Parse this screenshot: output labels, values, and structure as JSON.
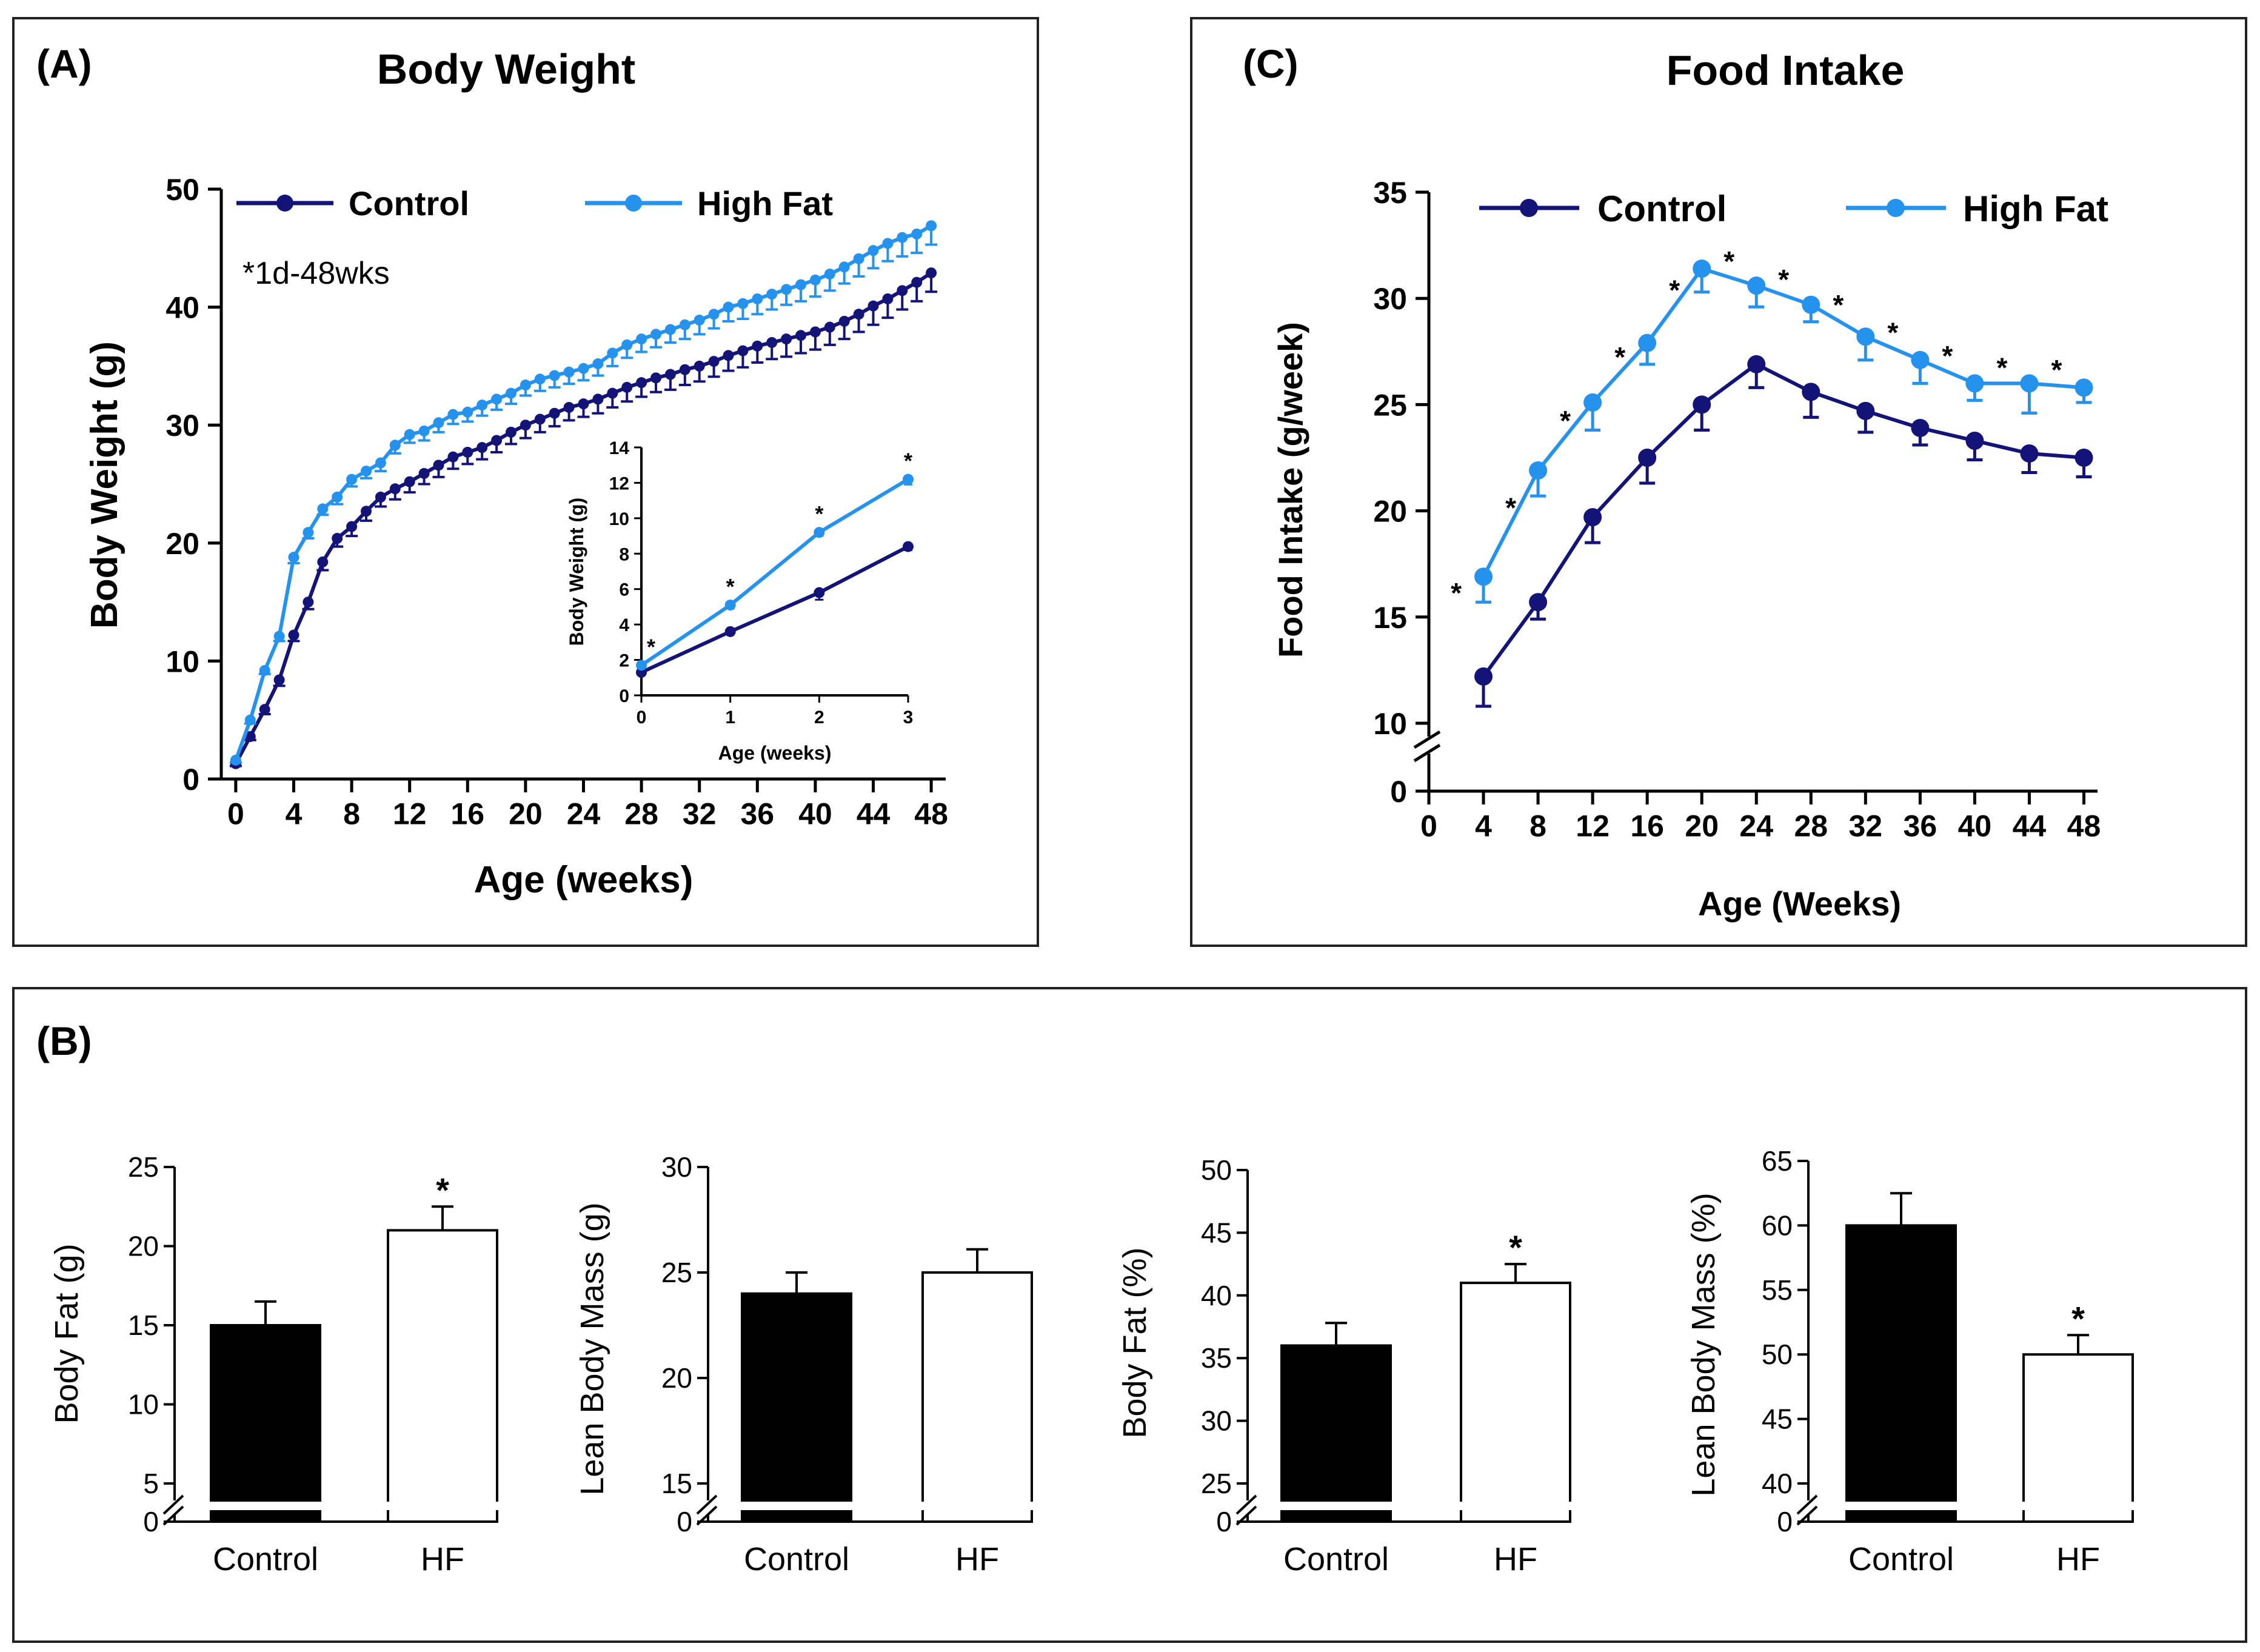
{
  "colors": {
    "control": "#141478",
    "high_fat": "#2592EE",
    "frame": "#222222",
    "bar_control": "#000000",
    "bar_hf": "#ffffff"
  },
  "chart_data": [
    {
      "id": "A",
      "type": "line",
      "panel_label": "(A)",
      "title": "Body Weight",
      "xlabel": "Age (weeks)",
      "ylabel": "Body Weight (g)",
      "xlim": [
        -1,
        49
      ],
      "ylim": [
        0,
        50
      ],
      "xticks": [
        0,
        4,
        8,
        12,
        16,
        20,
        24,
        28,
        32,
        36,
        40,
        44,
        48
      ],
      "yticks": [
        0,
        10,
        20,
        30,
        40,
        50
      ],
      "annotation": "*1d-48wks",
      "legend": [
        "Control",
        "High Fat"
      ],
      "legend_position": "top",
      "x": [
        0,
        1,
        2,
        3,
        4,
        5,
        6,
        7,
        8,
        9,
        10,
        11,
        12,
        13,
        14,
        15,
        16,
        17,
        18,
        19,
        20,
        21,
        22,
        23,
        24,
        25,
        26,
        27,
        28,
        29,
        30,
        31,
        32,
        33,
        34,
        35,
        36,
        37,
        38,
        39,
        40,
        41,
        42,
        43,
        44,
        45,
        46,
        47,
        48
      ],
      "series": [
        {
          "name": "Control",
          "values": [
            1.3,
            3.6,
            5.9,
            8.4,
            12.2,
            15.0,
            18.4,
            20.4,
            21.4,
            22.7,
            23.9,
            24.6,
            25.2,
            25.9,
            26.6,
            27.3,
            27.7,
            28.1,
            28.7,
            29.4,
            30.0,
            30.5,
            31.0,
            31.5,
            31.8,
            32.2,
            32.7,
            33.2,
            33.6,
            34.0,
            34.3,
            34.7,
            35.0,
            35.4,
            35.9,
            36.3,
            36.7,
            37.0,
            37.3,
            37.6,
            37.9,
            38.3,
            38.8,
            39.4,
            40.1,
            40.7,
            41.4,
            42.1,
            42.9
          ],
          "errors": [
            0.2,
            0.3,
            0.4,
            0.5,
            0.5,
            0.6,
            0.7,
            0.7,
            0.8,
            0.8,
            0.8,
            0.9,
            0.9,
            0.9,
            1.0,
            1.0,
            1.0,
            1.0,
            1.0,
            1.0,
            1.1,
            1.1,
            1.1,
            1.1,
            1.1,
            1.2,
            1.2,
            1.2,
            1.2,
            1.2,
            1.3,
            1.3,
            1.3,
            1.3,
            1.3,
            1.4,
            1.4,
            1.4,
            1.5,
            1.5,
            1.5,
            1.5,
            1.5,
            1.5,
            1.6,
            1.6,
            1.6,
            1.6,
            1.6
          ]
        },
        {
          "name": "High Fat",
          "values": [
            1.6,
            5.0,
            9.2,
            12.1,
            18.8,
            20.9,
            22.9,
            23.9,
            25.4,
            26.1,
            26.8,
            28.3,
            29.2,
            29.5,
            30.2,
            30.9,
            31.1,
            31.7,
            32.2,
            32.7,
            33.4,
            33.9,
            34.2,
            34.5,
            34.8,
            35.2,
            36.1,
            36.8,
            37.3,
            37.7,
            38.1,
            38.5,
            38.9,
            39.4,
            40.0,
            40.3,
            40.7,
            41.1,
            41.5,
            41.9,
            42.3,
            42.8,
            43.4,
            44.1,
            44.8,
            45.4,
            45.9,
            46.2,
            46.9
          ],
          "errors": [
            0.2,
            0.3,
            0.3,
            0.4,
            0.5,
            0.5,
            0.5,
            0.6,
            0.6,
            0.6,
            0.7,
            0.7,
            0.7,
            0.8,
            0.8,
            0.8,
            0.8,
            0.9,
            0.9,
            0.9,
            0.9,
            1.0,
            1.0,
            1.0,
            1.0,
            1.0,
            1.1,
            1.1,
            1.1,
            1.1,
            1.1,
            1.2,
            1.2,
            1.2,
            1.2,
            1.3,
            1.3,
            1.3,
            1.3,
            1.4,
            1.4,
            1.4,
            1.4,
            1.5,
            1.5,
            1.5,
            1.6,
            1.6,
            1.6
          ]
        }
      ]
    },
    {
      "id": "A-inset",
      "type": "line",
      "xlabel": "Age (weeks)",
      "ylabel": "Body Weight (g)",
      "xlim": [
        0,
        3
      ],
      "ylim": [
        0,
        14
      ],
      "xticks": [
        0,
        1,
        2,
        3
      ],
      "yticks": [
        0,
        2,
        4,
        6,
        8,
        10,
        12,
        14
      ],
      "x": [
        0,
        1,
        2,
        3
      ],
      "series": [
        {
          "name": "Control",
          "values": [
            1.3,
            3.6,
            5.8,
            8.4
          ],
          "errors": [
            0.1,
            0.1,
            0.4,
            0.2
          ]
        },
        {
          "name": "High Fat",
          "values": [
            1.7,
            5.1,
            9.2,
            12.2
          ],
          "errors": [
            0.1,
            0.2,
            0.2,
            0.3
          ]
        }
      ],
      "significance": [
        "*",
        "*",
        "*",
        "*"
      ]
    },
    {
      "id": "C",
      "type": "line",
      "panel_label": "(C)",
      "title": "Food Intake",
      "xlabel": "Age (Weeks)",
      "ylabel": "Food Intake (g/week)",
      "xlim": [
        0,
        49
      ],
      "ylim": [
        10,
        35
      ],
      "axis_break": true,
      "xticks": [
        0,
        4,
        8,
        12,
        16,
        20,
        24,
        28,
        32,
        36,
        40,
        44,
        48
      ],
      "yticks": [
        10,
        15,
        20,
        25,
        30,
        35
      ],
      "ytick_zero": "0",
      "legend": [
        "Control",
        "High Fat"
      ],
      "legend_position": "top",
      "x": [
        4,
        8,
        12,
        16,
        20,
        24,
        28,
        32,
        36,
        40,
        44,
        48
      ],
      "series": [
        {
          "name": "Control",
          "values": [
            12.2,
            15.7,
            19.7,
            22.5,
            25.0,
            26.9,
            25.6,
            24.7,
            23.9,
            23.3,
            22.7,
            22.5
          ],
          "errors": [
            1.4,
            0.8,
            1.2,
            1.2,
            1.2,
            1.1,
            1.2,
            1.0,
            0.8,
            0.9,
            0.9,
            0.9
          ]
        },
        {
          "name": "High Fat",
          "values": [
            16.9,
            21.9,
            25.1,
            27.9,
            31.4,
            30.6,
            29.7,
            28.2,
            27.1,
            26.0,
            26.0,
            25.8
          ],
          "errors": [
            1.2,
            1.2,
            1.3,
            1.0,
            1.1,
            1.0,
            0.8,
            1.1,
            1.1,
            0.8,
            1.4,
            0.7
          ]
        }
      ],
      "significance_marker": "*",
      "significance_x": [
        2,
        6,
        10,
        14,
        18,
        22,
        26,
        30,
        34,
        38,
        42,
        46
      ]
    },
    {
      "id": "B1",
      "type": "bar",
      "panel_label": "(B)",
      "ylabel": "Body Fat (g)",
      "categories": [
        "Control",
        "HF"
      ],
      "values": [
        15,
        21
      ],
      "errors": [
        1.5,
        1.5
      ],
      "significance": [
        "",
        "*"
      ],
      "ylim": [
        5,
        25
      ],
      "yticks": [
        5,
        10,
        15,
        20,
        25
      ],
      "ytick_zero": "0",
      "axis_break": true
    },
    {
      "id": "B2",
      "type": "bar",
      "ylabel": "Lean Body Mass (g)",
      "categories": [
        "Control",
        "HF"
      ],
      "values": [
        24,
        25
      ],
      "errors": [
        1.0,
        1.1
      ],
      "significance": [
        "",
        ""
      ],
      "ylim": [
        15,
        30
      ],
      "yticks": [
        15,
        20,
        25,
        30
      ],
      "ytick_zero": "0",
      "axis_break": true
    },
    {
      "id": "B3",
      "type": "bar",
      "ylabel": "Body Fat (%)",
      "categories": [
        "Control",
        "HF"
      ],
      "values": [
        36,
        41
      ],
      "errors": [
        1.8,
        1.5
      ],
      "significance": [
        "",
        "*"
      ],
      "ylim": [
        25,
        50
      ],
      "yticks": [
        25,
        30,
        35,
        40,
        45,
        50
      ],
      "ytick_zero": "0",
      "axis_break": true
    },
    {
      "id": "B4",
      "type": "bar",
      "ylabel": "Lean Body Mass (%)",
      "categories": [
        "Control",
        "HF"
      ],
      "values": [
        60,
        50
      ],
      "errors": [
        2.5,
        1.5
      ],
      "significance": [
        "",
        "*"
      ],
      "ylim": [
        40,
        65
      ],
      "yticks": [
        40,
        45,
        50,
        55,
        60,
        65
      ],
      "ytick_zero": "0",
      "axis_break": true
    }
  ]
}
